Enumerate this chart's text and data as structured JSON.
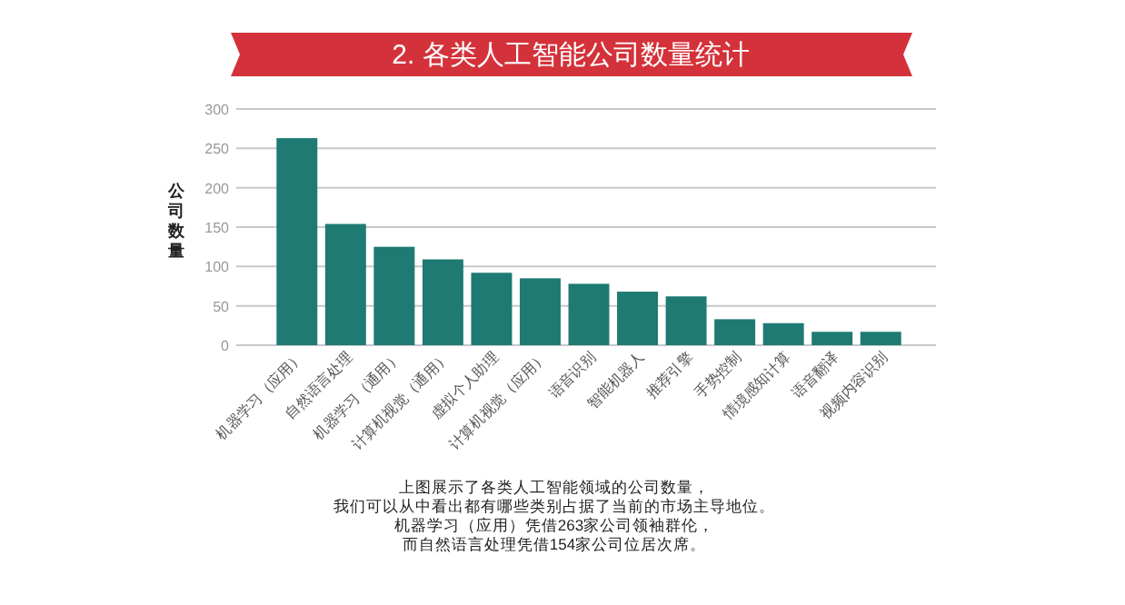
{
  "chart_data": {
    "type": "bar",
    "title": "2. 各类人工智能公司数量统计",
    "ylabel": "公司数量",
    "categories": [
      "机器学习（应用）",
      "自然语言处理",
      "机器学习（通用）",
      "计算机视觉（通用）",
      "虚拟个人助理",
      "计算机视觉（应用）",
      "语音识别",
      "智能机器人",
      "推荐引擎",
      "手势控制",
      "情境感知计算",
      "语音翻译",
      "视频内容识别"
    ],
    "values": [
      263,
      154,
      125,
      109,
      92,
      85,
      78,
      68,
      62,
      33,
      28,
      17,
      17
    ],
    "color": "#1f7a73",
    "ylim": [
      0,
      300
    ],
    "yticks": [
      0,
      50,
      100,
      150,
      200,
      250,
      300
    ],
    "grid": "y",
    "annotations": [
      "上图展示了各类人工智能领域的公司数量，",
      "我们可以从中看出都有哪些类别占据了当前的市场主导地位。",
      "机器学习（应用）凭借263家公司领袖群伦，",
      "而自然语言处理凭借154家公司位居次席。"
    ]
  }
}
